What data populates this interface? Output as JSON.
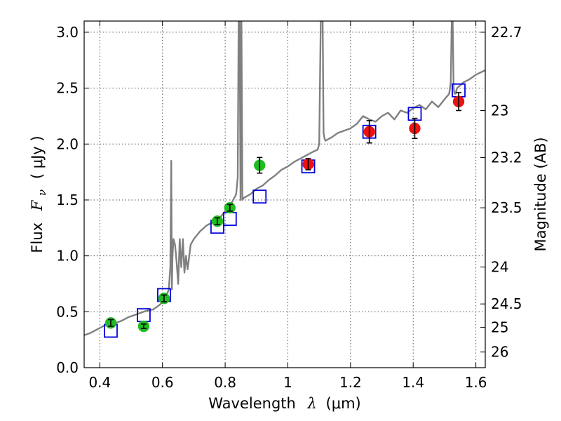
{
  "chart_data": {
    "type": "scatter",
    "xlabel_prefix": "Wavelength",
    "xlabel_symbol": "λ",
    "xlabel_unit": "(μm)",
    "ylabel_prefix": "Flux",
    "ylabel_symbol": "F",
    "ylabel_subscript": "ν",
    "ylabel_unit": "( μJy )",
    "y2label": "Magnitude (AB)",
    "xlim": [
      0.35,
      1.63
    ],
    "ylim": [
      0.0,
      3.1
    ],
    "xticks": [
      0.4,
      0.6,
      0.8,
      1.0,
      1.2,
      1.4,
      1.6
    ],
    "xtick_labels": [
      "0.4",
      "0.6",
      "0.8",
      "1",
      "1.2",
      "1.4",
      "1.6"
    ],
    "yticks": [
      0.0,
      0.5,
      1.0,
      1.5,
      2.0,
      2.5,
      3.0
    ],
    "ytick_labels": [
      "0.0",
      "0.5",
      "1.0",
      "1.5",
      "2.0",
      "2.5",
      "3.0"
    ],
    "y2ticks": [
      {
        "label": "22.7",
        "flux": 3.0
      },
      {
        "label": "23",
        "flux": 2.3
      },
      {
        "label": "23.2",
        "flux": 1.88
      },
      {
        "label": "23.5",
        "flux": 1.43
      },
      {
        "label": "24",
        "flux": 0.9
      },
      {
        "label": "24.5",
        "flux": 0.57
      },
      {
        "label": "25",
        "flux": 0.36
      },
      {
        "label": "26",
        "flux": 0.14
      }
    ],
    "grid": true,
    "colors": {
      "model": "#808080",
      "green": "#22bb22",
      "red": "#ee1111",
      "square": "#0000dd",
      "errorbar": "#000000"
    },
    "model_spectrum": {
      "name": "model SED",
      "x": [
        0.35,
        0.37,
        0.39,
        0.41,
        0.43,
        0.45,
        0.47,
        0.49,
        0.51,
        0.53,
        0.55,
        0.57,
        0.59,
        0.605,
        0.615,
        0.62,
        0.625,
        0.628,
        0.63,
        0.632,
        0.635,
        0.64,
        0.645,
        0.65,
        0.655,
        0.66,
        0.665,
        0.67,
        0.675,
        0.68,
        0.69,
        0.7,
        0.72,
        0.74,
        0.76,
        0.78,
        0.8,
        0.82,
        0.835,
        0.84,
        0.843,
        0.846,
        0.849,
        0.852,
        0.855,
        0.86,
        0.88,
        0.9,
        0.92,
        0.94,
        0.96,
        0.98,
        1.0,
        1.02,
        1.04,
        1.06,
        1.08,
        1.095,
        1.1,
        1.105,
        1.108,
        1.111,
        1.114,
        1.117,
        1.12,
        1.14,
        1.16,
        1.18,
        1.2,
        1.22,
        1.24,
        1.26,
        1.28,
        1.3,
        1.32,
        1.34,
        1.36,
        1.38,
        1.4,
        1.42,
        1.44,
        1.46,
        1.48,
        1.5,
        1.515,
        1.52,
        1.523,
        1.526,
        1.529,
        1.532,
        1.535,
        1.54,
        1.56,
        1.58,
        1.6,
        1.63
      ],
      "y": [
        0.29,
        0.31,
        0.34,
        0.37,
        0.39,
        0.4,
        0.42,
        0.45,
        0.47,
        0.49,
        0.51,
        0.52,
        0.56,
        0.6,
        0.66,
        0.7,
        0.9,
        1.85,
        0.7,
        1.0,
        1.15,
        1.1,
        0.95,
        0.75,
        1.15,
        0.9,
        1.15,
        0.85,
        1.0,
        0.88,
        1.1,
        1.15,
        1.22,
        1.27,
        1.3,
        1.33,
        1.4,
        1.47,
        1.55,
        1.7,
        3.1,
        3.1,
        1.5,
        3.1,
        1.5,
        1.52,
        1.55,
        1.6,
        1.63,
        1.68,
        1.72,
        1.77,
        1.8,
        1.84,
        1.87,
        1.9,
        1.93,
        1.95,
        2.0,
        3.1,
        3.1,
        3.1,
        2.1,
        2.05,
        2.03,
        2.06,
        2.1,
        2.12,
        2.14,
        2.18,
        2.25,
        2.22,
        2.2,
        2.25,
        2.28,
        2.22,
        2.3,
        2.28,
        2.32,
        2.35,
        2.31,
        2.38,
        2.33,
        2.4,
        2.45,
        2.55,
        3.1,
        3.1,
        2.5,
        2.45,
        2.45,
        2.5,
        2.55,
        2.58,
        2.62,
        2.66
      ]
    },
    "series": [
      {
        "name": "green measured points",
        "marker": "circle",
        "x": [
          0.435,
          0.54,
          0.605,
          0.775,
          0.815,
          0.91
        ],
        "y": [
          0.4,
          0.37,
          0.62,
          1.31,
          1.43,
          1.81
        ],
        "yerr": [
          0.03,
          0.02,
          0.03,
          0.03,
          0.03,
          0.07
        ]
      },
      {
        "name": "red measured points",
        "marker": "circle",
        "x": [
          1.065,
          1.26,
          1.405,
          1.545
        ],
        "y": [
          1.82,
          2.11,
          2.14,
          2.38
        ],
        "yerr": [
          0.05,
          0.1,
          0.09,
          0.08
        ]
      },
      {
        "name": "model photometry",
        "marker": "square",
        "x": [
          0.435,
          0.54,
          0.605,
          0.775,
          0.815,
          0.91,
          1.065,
          1.26,
          1.405,
          1.545
        ],
        "y": [
          0.33,
          0.47,
          0.65,
          1.26,
          1.33,
          1.53,
          1.8,
          2.11,
          2.27,
          2.48
        ]
      }
    ]
  }
}
